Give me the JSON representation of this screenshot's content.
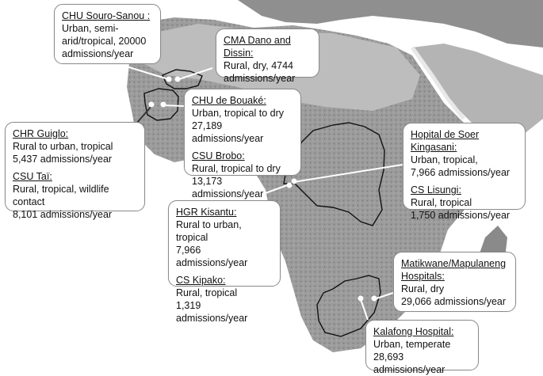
{
  "map": {
    "sites": [
      {
        "id": "chu-souro-sanou",
        "name": "CHU Souro-Sanou :",
        "lines": [
          "Urban, semi-",
          "arid/tropical, 20000",
          "admissions/year"
        ]
      },
      {
        "id": "cma-dano-dissin",
        "name": "CMA Dano and Dissin:",
        "lines": [
          "Rural, dry, 4744",
          "admissions/year"
        ]
      },
      {
        "id": "chu-bouake",
        "name": "CHU de Bouaké:",
        "lines": [
          "Urban, tropical to dry",
          "27,189 admissions/year"
        ]
      },
      {
        "id": "csu-brobo",
        "name": "CSU Brobo:",
        "lines": [
          "Rural, tropical to dry",
          "13,173 admissions/year"
        ]
      },
      {
        "id": "chr-guiglo",
        "name": "CHR Guiglo:",
        "lines": [
          "Rural to urban, tropical",
          "5,437 admissions/year"
        ]
      },
      {
        "id": "csu-tai",
        "name": "CSU Taï:",
        "lines": [
          "Rural, tropical, wildlife contact",
          "8,101 admissions/year"
        ]
      },
      {
        "id": "hopital-soer-kingasani",
        "name": "Hopital de Soer Kingasani:",
        "lines": [
          "Urban, tropical,",
          "7,966 admissions/year"
        ]
      },
      {
        "id": "cs-lisungi",
        "name": "CS Lisungi:",
        "lines": [
          "Rural, tropical",
          "1,750 admissions/year"
        ]
      },
      {
        "id": "hgr-kisantu",
        "name": "HGR Kisantu:",
        "lines": [
          "Rural to urban, tropical",
          "7,966 admissions/year"
        ]
      },
      {
        "id": "cs-kipako",
        "name": "CS Kipako:",
        "lines": [
          "Rural, tropical",
          "1,319 admissions/year"
        ]
      },
      {
        "id": "matikwane-mapulaneng",
        "name": "Matikwane/Mapulaneng",
        "name2": "Hospitals:",
        "lines": [
          "Rural, dry",
          "29,066 admissions/year"
        ]
      },
      {
        "id": "kalafong",
        "name": "Kalafong Hospital:",
        "lines": [
          "Urban, temperate",
          "28,693 admissions/year"
        ]
      }
    ]
  }
}
